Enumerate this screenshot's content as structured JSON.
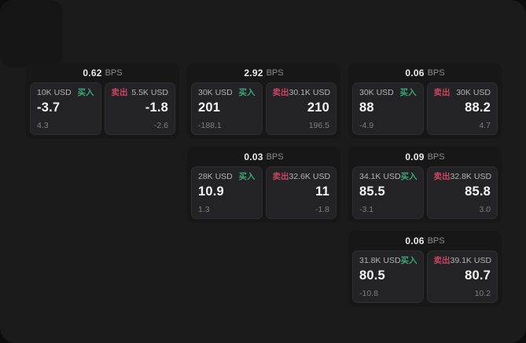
{
  "labels": {
    "bps_suffix": "BPS",
    "buy": "买入",
    "sell": "卖出"
  },
  "colors": {
    "buy": "#3aa876",
    "sell": "#c84563"
  },
  "cards": [
    {
      "bps": "0.62",
      "col": 1,
      "row": 1,
      "buy": {
        "amount": "10K USD",
        "value": "-3.7",
        "sub": "4.3"
      },
      "sell": {
        "amount": "5.5K USD",
        "value": "-1.8",
        "sub": "-2.6"
      }
    },
    {
      "bps": "2.92",
      "col": 2,
      "row": 1,
      "buy": {
        "amount": "30K USD",
        "value": "201",
        "sub": "-188.1"
      },
      "sell": {
        "amount": "30.1K USD",
        "value": "210",
        "sub": "196.5"
      }
    },
    {
      "bps": "0.06",
      "col": 3,
      "row": 1,
      "buy": {
        "amount": "30K USD",
        "value": "88",
        "sub": "-4.9"
      },
      "sell": {
        "amount": "30K USD",
        "value": "88.2",
        "sub": "4.7"
      }
    },
    {
      "bps": "0.03",
      "col": 2,
      "row": 2,
      "buy": {
        "amount": "28K USD",
        "value": "10.9",
        "sub": "1.3"
      },
      "sell": {
        "amount": "32.6K USD",
        "value": "11",
        "sub": "-1.8"
      }
    },
    {
      "bps": "0.09",
      "col": 3,
      "row": 2,
      "buy": {
        "amount": "34.1K USD",
        "value": "85.5",
        "sub": "-3.1"
      },
      "sell": {
        "amount": "32.8K USD",
        "value": "85.8",
        "sub": "3.0"
      }
    },
    {
      "bps": "0.06",
      "col": 3,
      "row": 3,
      "buy": {
        "amount": "31.8K USD",
        "value": "80.5",
        "sub": "-10.8"
      },
      "sell": {
        "amount": "39.1K USD",
        "value": "80.7",
        "sub": "10.2"
      }
    }
  ]
}
